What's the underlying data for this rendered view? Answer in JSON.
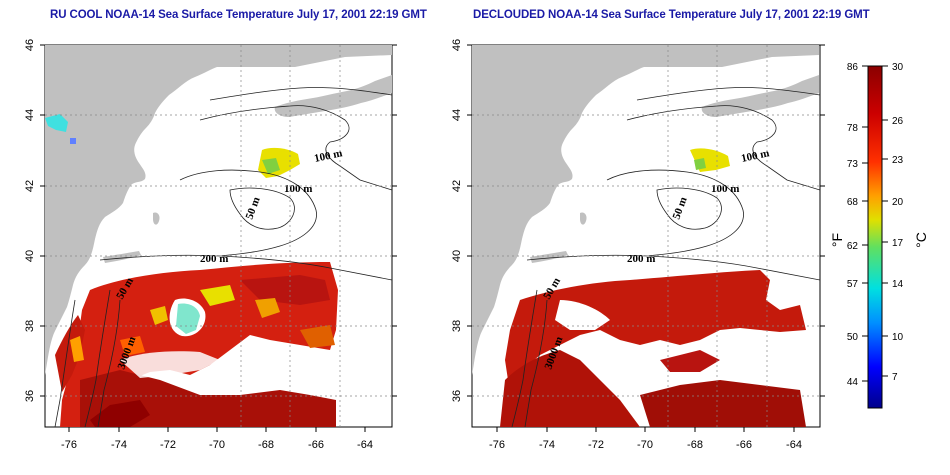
{
  "left_map": {
    "title": "RU COOL NOAA-14 Sea Surface Temperature July 17, 2001 22:19 GMT"
  },
  "right_map": {
    "title": "DECLOUDED NOAA-14 Sea Surface Temperature July 17, 2001 22:19 GMT"
  },
  "axes": {
    "x_ticks": [
      "-76",
      "-74",
      "-72",
      "-70",
      "-68",
      "-66",
      "-64"
    ],
    "y_ticks": [
      "46",
      "44",
      "42",
      "40",
      "38",
      "36"
    ]
  },
  "contour_labels": [
    "100 m",
    "100 m",
    "50 m",
    "200 m",
    "50 m",
    "3000 m"
  ],
  "colorbar": {
    "fahrenheit_ticks": [
      "86",
      "78",
      "73",
      "68",
      "62",
      "57",
      "50",
      "44"
    ],
    "celsius_ticks": [
      "30",
      "26",
      "23",
      "20",
      "17",
      "14",
      "10",
      "7"
    ],
    "unit_f": "°F",
    "unit_c": "°C",
    "colors": [
      "#00008b",
      "#0000ff",
      "#0090ff",
      "#00e0e0",
      "#60e060",
      "#e0e000",
      "#ffa000",
      "#ff3000",
      "#cc0000",
      "#8b0000"
    ]
  },
  "colors": {
    "land": "#c0c0c0",
    "warm": "#c41a0c",
    "hot": "#8f0000",
    "cool_yellow": "#e8e000",
    "cool_green": "#80d040",
    "cool_cyan": "#40e0e0"
  }
}
